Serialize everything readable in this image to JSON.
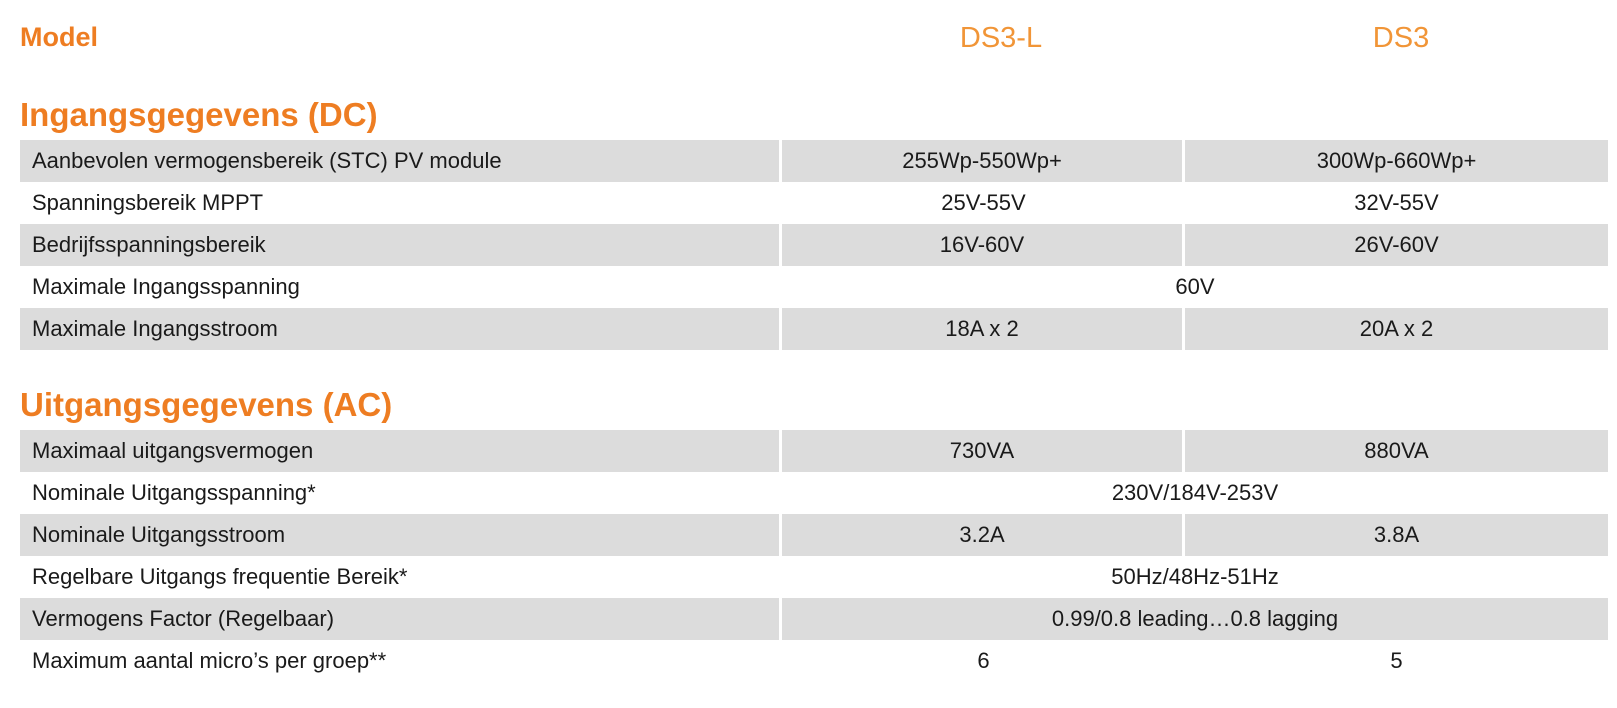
{
  "header": {
    "model_label": "Model",
    "models": [
      "DS3-L",
      "DS3"
    ]
  },
  "sections": [
    {
      "title": "Ingangsgegevens (DC)",
      "rows": [
        {
          "label": "Aanbevolen vermogensbereik (STC) PV module",
          "v1": "255Wp-550Wp+",
          "v2": "300Wp-660Wp+"
        },
        {
          "label": "Spanningsbereik MPPT",
          "v1": "25V-55V",
          "v2": "32V-55V"
        },
        {
          "label": "Bedrijfsspanningsbereik",
          "v1": "16V-60V",
          "v2": "26V-60V"
        },
        {
          "label": "Maximale Ingangsspanning",
          "span": "60V"
        },
        {
          "label": "Maximale Ingangsstroom",
          "v1": "18A x 2",
          "v2": "20A x 2"
        }
      ]
    },
    {
      "title": "Uitgangsgegevens (AC)",
      "rows": [
        {
          "label": "Maximaal uitgangsvermogen",
          "v1": "730VA",
          "v2": "880VA"
        },
        {
          "label": "Nominale Uitgangsspanning*",
          "span": "230V/184V-253V"
        },
        {
          "label": "Nominale Uitgangsstroom",
          "v1": "3.2A",
          "v2": "3.8A"
        },
        {
          "label": "Regelbare Uitgangs frequentie Bereik*",
          "span": "50Hz/48Hz-51Hz"
        },
        {
          "label": "Vermogens Factor (Regelbaar)",
          "span": "0.99/0.8 leading…0.8 lagging"
        },
        {
          "label": "Maximum aantal micro’s per groep**",
          "v1": "6",
          "v2": "5"
        }
      ]
    }
  ],
  "colors": {
    "accent": "#ee7d22",
    "row_shade": "#dcdcdc"
  }
}
